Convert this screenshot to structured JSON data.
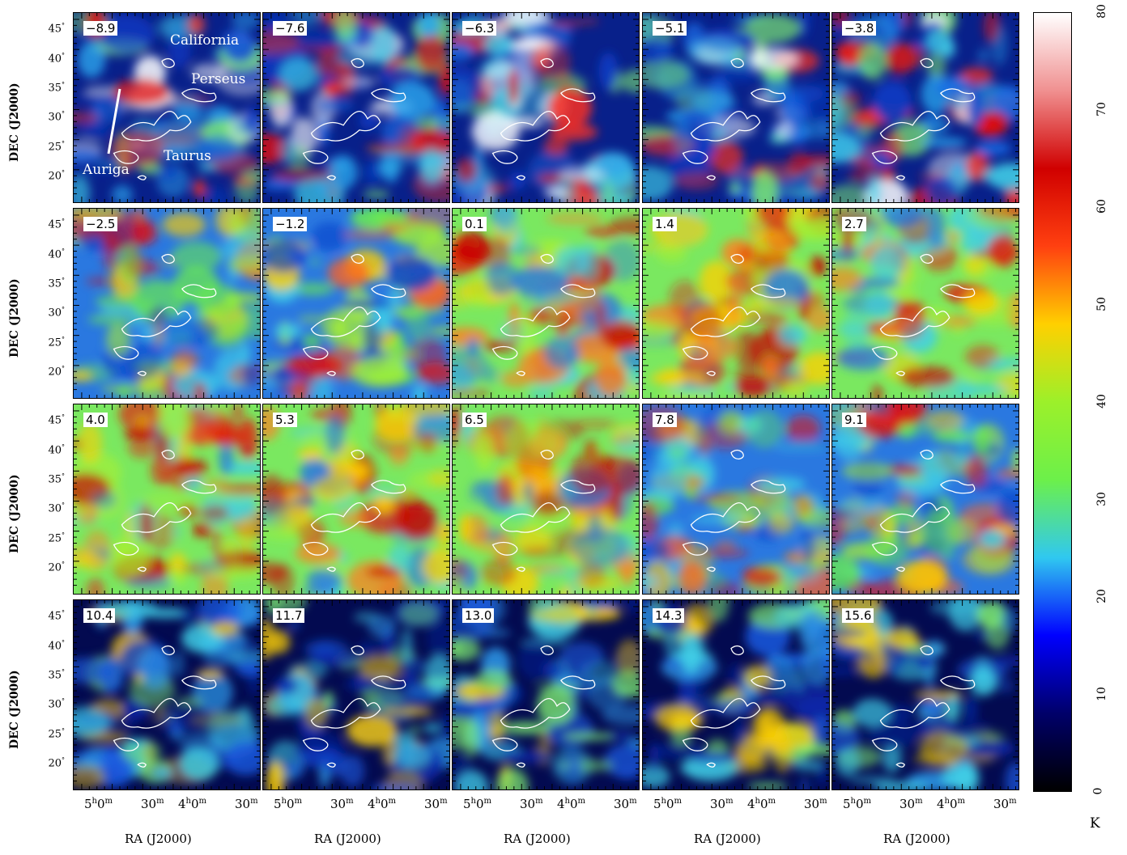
{
  "figure": {
    "panels": [
      {
        "velocity": "−8.9",
        "style": "blue"
      },
      {
        "velocity": "−7.6",
        "style": "blue"
      },
      {
        "velocity": "−6.3",
        "style": "blue"
      },
      {
        "velocity": "−5.1",
        "style": "blue"
      },
      {
        "velocity": "−3.8",
        "style": "blue"
      },
      {
        "velocity": "−2.5",
        "style": "mixed"
      },
      {
        "velocity": "−1.2",
        "style": "mixed"
      },
      {
        "velocity": "0.1",
        "style": "bright"
      },
      {
        "velocity": "1.4",
        "style": "bright"
      },
      {
        "velocity": "2.7",
        "style": "bright"
      },
      {
        "velocity": "4.0",
        "style": "bright"
      },
      {
        "velocity": "5.3",
        "style": "bright"
      },
      {
        "velocity": "6.5",
        "style": "bright"
      },
      {
        "velocity": "7.8",
        "style": "mixed"
      },
      {
        "velocity": "9.1",
        "style": "mixed"
      },
      {
        "velocity": "10.4",
        "style": "dark"
      },
      {
        "velocity": "11.7",
        "style": "dark"
      },
      {
        "velocity": "13.0",
        "style": "dark"
      },
      {
        "velocity": "14.3",
        "style": "dark"
      },
      {
        "velocity": "15.6",
        "style": "dark"
      }
    ],
    "region_labels": [
      "California",
      "Perseus",
      "Taurus",
      "Auriga"
    ],
    "y_axis": {
      "title": "DEC (J2000)",
      "ticks": [
        "45",
        "40",
        "35",
        "30",
        "25",
        "20"
      ]
    },
    "x_axis": {
      "title": "RA (J2000)",
      "ticks": [
        {
          "main": "5",
          "h": "h",
          "m": "0",
          "u": "m"
        },
        {
          "main": "30",
          "u": "m"
        },
        {
          "main": "4",
          "h": "h",
          "m": "0",
          "u": "m"
        },
        {
          "main": "30",
          "u": "m"
        }
      ]
    },
    "colorbar": {
      "ticks": [
        "0",
        "10",
        "20",
        "30",
        "40",
        "50",
        "60",
        "70",
        "80"
      ],
      "unit": "K",
      "range": [
        0,
        80
      ]
    }
  }
}
